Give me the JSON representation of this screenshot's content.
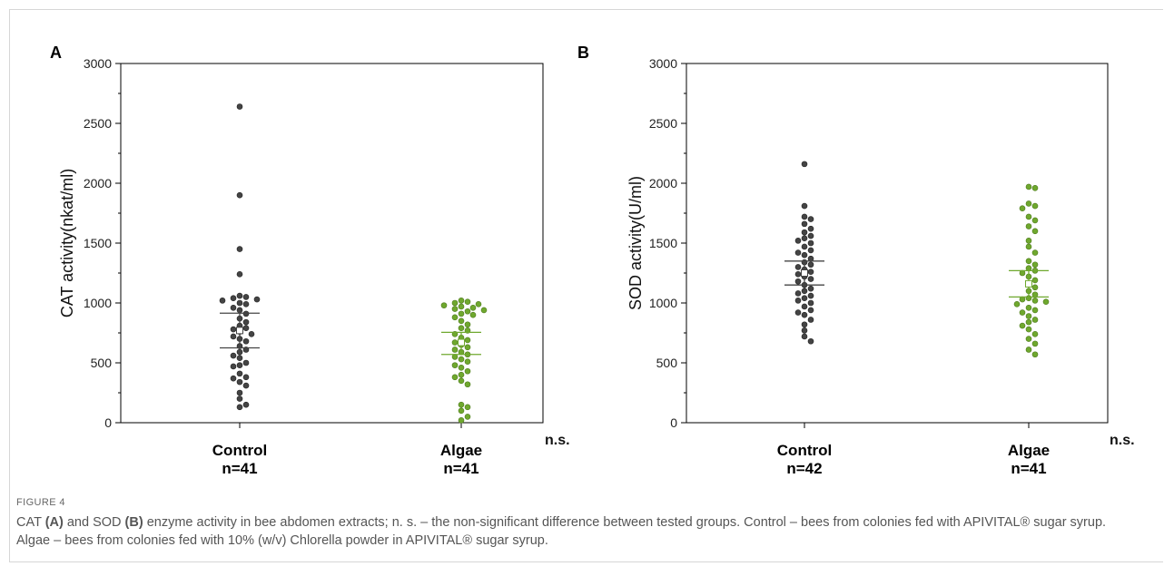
{
  "colors": {
    "control": "#444444",
    "algae": "#6fa82e",
    "axis": "#000000"
  },
  "chart_data": [
    {
      "type": "scatter",
      "panel_label": "A",
      "ylabel": "CAT activity(nkat/ml)",
      "ylim": [
        0,
        3000
      ],
      "yticks": [
        0,
        500,
        1000,
        1500,
        2000,
        2500,
        3000
      ],
      "significance": "n.s.",
      "groups": [
        {
          "name": "Control",
          "n_label": "n=41",
          "color_key": "control",
          "mean": 770,
          "ci": [
            625,
            915
          ],
          "values": [
            2640,
            1900,
            1450,
            1240,
            1060,
            1050,
            1040,
            1030,
            1020,
            1000,
            990,
            960,
            940,
            910,
            870,
            840,
            810,
            790,
            780,
            760,
            740,
            720,
            700,
            680,
            640,
            610,
            590,
            560,
            540,
            500,
            480,
            470,
            410,
            380,
            370,
            340,
            310,
            250,
            200,
            150,
            130
          ]
        },
        {
          "name": "Algae",
          "n_label": "n=41",
          "color_key": "algae",
          "mean": 670,
          "ci": [
            570,
            755
          ],
          "values": [
            1020,
            1010,
            1000,
            990,
            980,
            970,
            960,
            950,
            940,
            930,
            910,
            900,
            880,
            850,
            820,
            790,
            770,
            740,
            710,
            690,
            670,
            650,
            630,
            610,
            590,
            570,
            550,
            530,
            510,
            480,
            460,
            430,
            400,
            380,
            350,
            320,
            150,
            130,
            100,
            50,
            20
          ]
        }
      ]
    },
    {
      "type": "scatter",
      "panel_label": "B",
      "ylabel": "SOD activity(U/ml)",
      "ylim": [
        0,
        3000
      ],
      "yticks": [
        0,
        500,
        1000,
        1500,
        2000,
        2500,
        3000
      ],
      "significance": "n.s.",
      "groups": [
        {
          "name": "Control",
          "n_label": "n=42",
          "color_key": "control",
          "mean": 1250,
          "ci": [
            1150,
            1350
          ],
          "values": [
            2160,
            1810,
            1720,
            1700,
            1660,
            1620,
            1590,
            1560,
            1540,
            1520,
            1500,
            1470,
            1440,
            1420,
            1400,
            1370,
            1340,
            1320,
            1300,
            1280,
            1260,
            1240,
            1220,
            1200,
            1180,
            1150,
            1120,
            1100,
            1080,
            1060,
            1040,
            1020,
            1000,
            970,
            940,
            920,
            900,
            860,
            820,
            770,
            720,
            680
          ]
        },
        {
          "name": "Algae",
          "n_label": "n=41",
          "color_key": "algae",
          "mean": 1160,
          "ci": [
            1050,
            1270
          ],
          "values": [
            1970,
            1960,
            1830,
            1810,
            1790,
            1720,
            1690,
            1640,
            1600,
            1520,
            1470,
            1420,
            1350,
            1320,
            1290,
            1270,
            1250,
            1220,
            1190,
            1160,
            1130,
            1100,
            1070,
            1040,
            1030,
            1020,
            1010,
            990,
            960,
            940,
            920,
            890,
            860,
            840,
            810,
            780,
            740,
            700,
            660,
            610,
            570
          ]
        }
      ]
    }
  ],
  "caption": {
    "label": "FIGURE 4",
    "line1_a": "CAT ",
    "line1_b": "(A)",
    "line1_c": " and SOD ",
    "line1_d": "(B)",
    "line1_e": " enzyme activity in bee abdomen extracts; n. s. – the non-significant difference between tested groups. Control – bees from colonies fed with APIVITAL® sugar syrup. Algae – bees from colonies fed with 10% (w/v) Chlorella powder in APIVITAL® sugar syrup."
  }
}
